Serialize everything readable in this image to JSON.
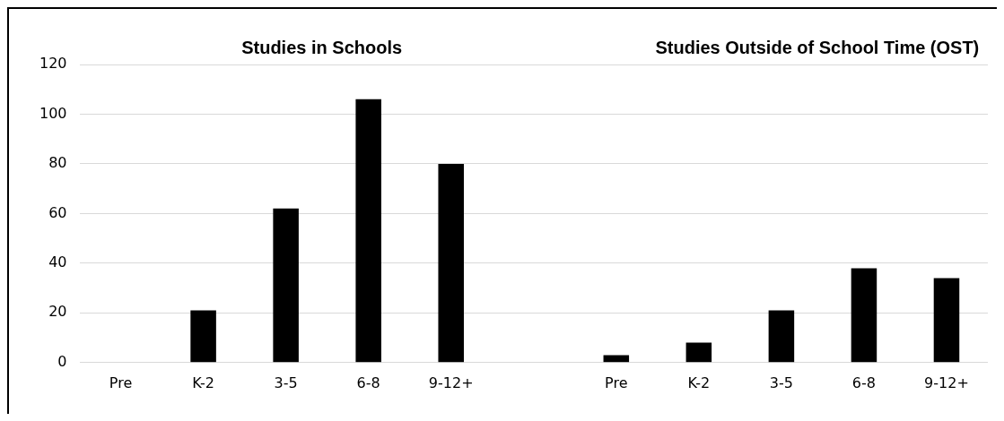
{
  "chart_data": {
    "type": "bar",
    "categories": [
      "Pre",
      "K-2",
      "3-5",
      "6-8",
      "9-12+",
      null,
      "Pre",
      "K-2",
      "3-5",
      "6-8",
      "9-12+"
    ],
    "values": [
      0,
      21,
      62,
      106,
      80,
      null,
      3,
      8,
      21,
      38,
      34
    ],
    "color": "#000000",
    "annotations": [
      "Studies in Schools",
      "Studies Outside of School Time (OST)"
    ],
    "ylim": [
      0,
      120
    ],
    "yticks": [
      0,
      20,
      40,
      60,
      80,
      100,
      120
    ],
    "grid": "y",
    "legend": false
  }
}
